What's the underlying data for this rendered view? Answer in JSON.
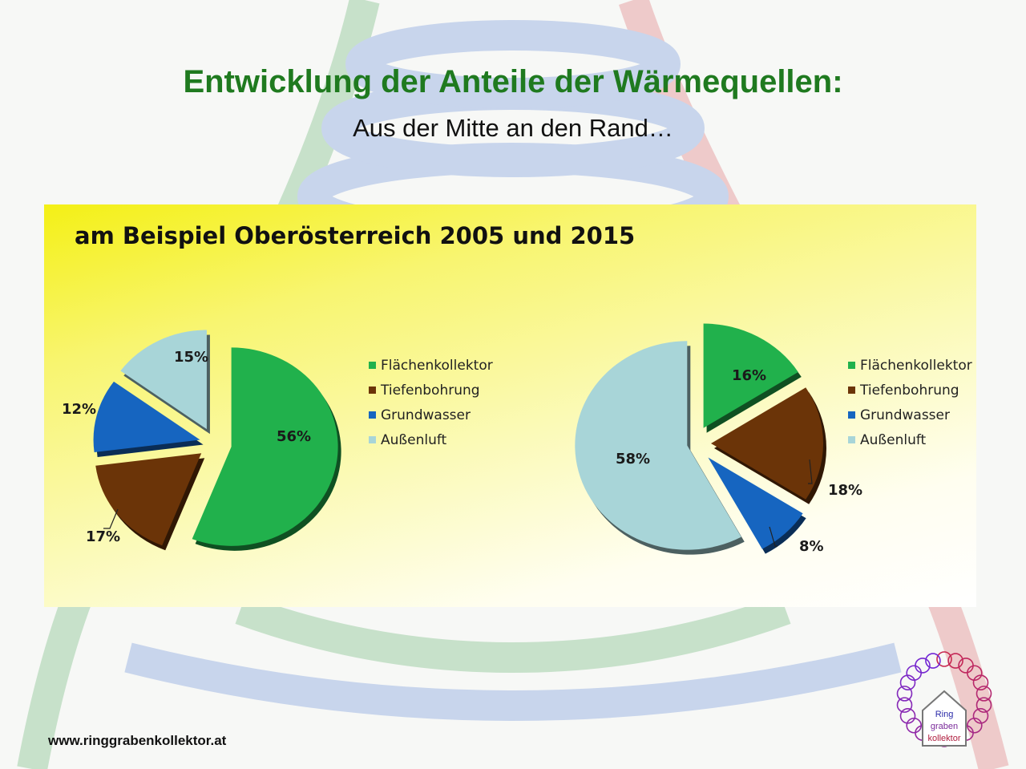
{
  "slide": {
    "title": "Entwicklung der Anteile der Wärmequellen:",
    "subtitle": "Aus der Mitte an den Rand…",
    "panel_title": "am Beispiel Oberösterreich 2005 und 2015",
    "url": "www.ringgrabenkollektor.at",
    "logo_lines": [
      "Ring",
      "graben",
      "kollektor"
    ]
  },
  "colors": {
    "Flächenkollektor": "#21b14c",
    "Tiefenbohrung": "#6b3408",
    "Grundwasser": "#1665c0",
    "Außenluft": "#a8d5d8"
  },
  "chart_data": [
    {
      "type": "pie",
      "title": "",
      "categories": [
        "Flächenkollektor",
        "Tiefenbohrung",
        "Grundwasser",
        "Außenluft"
      ],
      "values": [
        56,
        17,
        12,
        15
      ],
      "labels": [
        "56%",
        "17%",
        "12%",
        "15%"
      ],
      "legend": [
        "Flächenkollektor",
        "Tiefenbohrung",
        "Grundwasser",
        "Außenluft"
      ],
      "legend_position": "right"
    },
    {
      "type": "pie",
      "title": "",
      "categories": [
        "Flächenkollektor",
        "Tiefenbohrung",
        "Grundwasser",
        "Außenluft"
      ],
      "values": [
        16,
        18,
        8,
        58
      ],
      "labels": [
        "16%",
        "18%",
        "8%",
        "58%"
      ],
      "legend": [
        "Flächenkollektor",
        "Tiefenbohrung",
        "Grundwasser",
        "Außenluft"
      ],
      "legend_position": "right"
    }
  ]
}
